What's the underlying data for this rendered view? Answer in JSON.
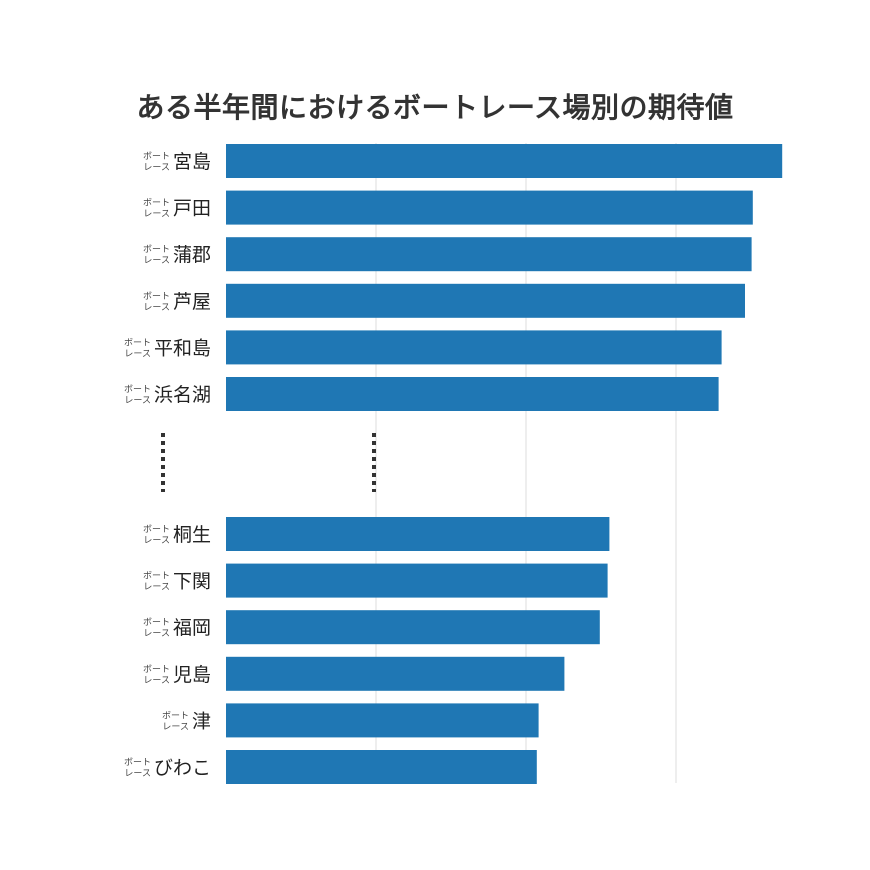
{
  "chart_data": {
    "type": "bar",
    "orientation": "horizontal",
    "title": "ある半年間におけるボートレース場別の期待値",
    "xlabel": "",
    "ylabel": "",
    "label_prefix": [
      "ボート",
      "レース"
    ],
    "xlim": [
      0,
      100
    ],
    "grid": true,
    "top_group": {
      "categories": [
        "宮島",
        "戸田",
        "蒲郡",
        "芦屋",
        "平和島",
        "浜名湖"
      ],
      "values": [
        92.7,
        87.8,
        87.6,
        86.5,
        82.6,
        82.1
      ]
    },
    "bottom_group": {
      "categories": [
        "桐生",
        "下関",
        "福岡",
        "児島",
        "津",
        "びわこ"
      ],
      "values": [
        63.9,
        63.6,
        62.3,
        56.4,
        52.1,
        51.8
      ]
    },
    "bar_color": "#1f77b4",
    "grid_color": "#dddddd",
    "ellipsis_color": "#333333"
  }
}
